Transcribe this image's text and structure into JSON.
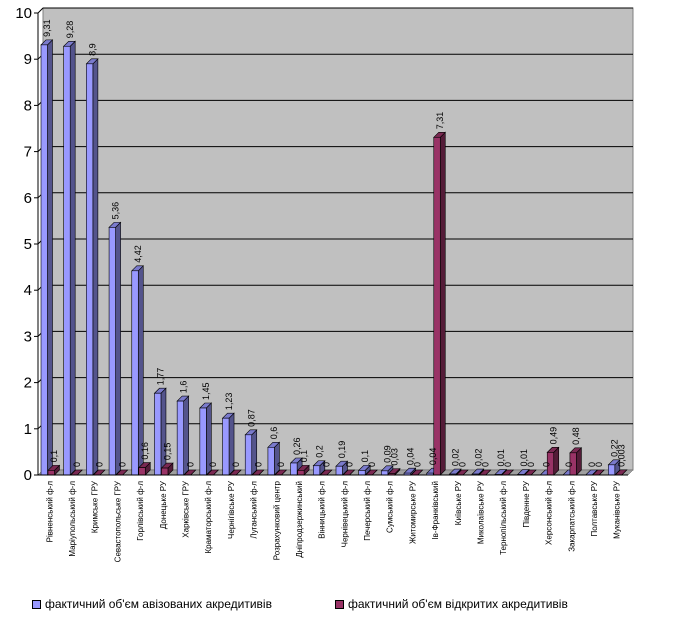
{
  "chart_data": {
    "type": "bar",
    "categories": [
      "Рівненський ф-л",
      "Маріупольський ф-л",
      "Кримське ГРУ",
      "Севастопольське ГРУ",
      "Горлівський ф-л",
      "Донецьке РУ",
      "Харківське ГРУ",
      "Краматорський ф-л",
      "Чернігівське РУ",
      "Луганський ф-л",
      "Розрахунковий центр",
      "Дніпродзержинський",
      "Вінницький ф-л",
      "Чернівецький ф-л",
      "Печерський ф-л",
      "Сумський ф-л",
      "Житомирське РУ",
      "Ів-Франківський",
      "Київське РУ",
      "Миколаївське РУ",
      "Тернопільський ф-л",
      "Південне РУ",
      "Херсонський ф-л",
      "Закарпатський ф-л",
      "Полтавське РУ",
      "Муканівське РУ"
    ],
    "series": [
      {
        "name": "фактичний об'єм авізованих акредитивів",
        "color": "#9999ff",
        "values": [
          9.31,
          9.28,
          8.9,
          5.36,
          4.42,
          1.77,
          1.6,
          1.45,
          1.23,
          0.87,
          0.6,
          0.26,
          0.2,
          0.19,
          0.1,
          0.09,
          0.04,
          0.04,
          0.02,
          0.02,
          0.01,
          0.01,
          0,
          0,
          0,
          0.22
        ],
        "labels": [
          "9,31",
          "9,28",
          "8,9",
          "5,36",
          "4,42",
          "1,77",
          "1,6",
          "1,45",
          "1,23",
          "0,87",
          "0,6",
          "0,26",
          "0,2",
          "0,19",
          "0,1",
          "0,09",
          "0,04",
          "0,04",
          "0,02",
          "0,02",
          "0,01",
          "0,01",
          "0",
          "0",
          "0",
          "0,22"
        ]
      },
      {
        "name": "фактичний об'єм відкритих акредитивів",
        "color": "#993366",
        "values": [
          0.1,
          0,
          0,
          0,
          0.16,
          0.15,
          0,
          0,
          0,
          0,
          0,
          0.1,
          0,
          0,
          0,
          0.03,
          0,
          7.31,
          0,
          0,
          0,
          0,
          0.49,
          0.48,
          0,
          0.003
        ],
        "labels": [
          "0,1",
          "0",
          "0",
          "0",
          "0,16",
          "0,15",
          "0",
          "0",
          "0",
          "0",
          "0",
          "0,1",
          "0",
          "0",
          "0",
          "0,03",
          "0",
          "7,31",
          "0",
          "0",
          "0",
          "0",
          "0,49",
          "0,48",
          "0",
          "0,003"
        ]
      }
    ],
    "ylim": [
      0,
      10
    ],
    "yticks": [
      "0",
      "1",
      "2",
      "3",
      "4",
      "5",
      "6",
      "7",
      "8",
      "9",
      "10"
    ],
    "grid": true,
    "legend_position": "bottom"
  }
}
